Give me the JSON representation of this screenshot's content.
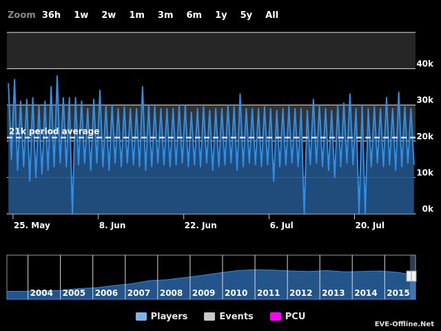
{
  "zoom": {
    "label": "Zoom",
    "buttons": [
      "36h",
      "1w",
      "2w",
      "1m",
      "3m",
      "6m",
      "1y",
      "5y",
      "All"
    ]
  },
  "legend": [
    {
      "label": "Players",
      "color": "#7cb5ec"
    },
    {
      "label": "Events",
      "color": "#c8c8c8"
    },
    {
      "label": "PCU",
      "color": "#ff00ff"
    }
  ],
  "watermark": "EVE-Offline.Net",
  "colors": {
    "line": "#2f8fe6",
    "area": "#23548a",
    "background": "#000000",
    "plot_band_dark": "#262626",
    "plot_band_mid": "#333333"
  },
  "chart_data": {
    "type": "line",
    "series": [
      {
        "name": "Players"
      }
    ],
    "x_range": [
      "2015-05-24",
      "2015-07-30"
    ],
    "x_tick_labels": [
      "25. May",
      "8. Jun",
      "22. Jun",
      "6. Jul",
      "20. Jul"
    ],
    "ylim": [
      0,
      50000
    ],
    "y_tick_labels": [
      "0k",
      "10k",
      "20k",
      "30k",
      "40k"
    ],
    "y_ticks": [
      0,
      10000,
      20000,
      30000,
      40000
    ],
    "period_average": {
      "value": 21000,
      "label": "21k period average"
    },
    "daily_peak": [
      36000,
      37000,
      31000,
      31500,
      32000,
      30000,
      31000,
      35000,
      38000,
      32000,
      32000,
      32000,
      31000,
      29000,
      31500,
      34000,
      30000,
      30000,
      29000,
      29500,
      29000,
      29000,
      35000,
      30000,
      29500,
      29000,
      29000,
      29000,
      30000,
      30000,
      28000,
      29000,
      29500,
      28500,
      29000,
      29000,
      30000,
      29500,
      33000,
      29000,
      29000,
      29000,
      29500,
      29000,
      28500,
      29000,
      29500,
      29000,
      29000,
      28500,
      31500,
      30000,
      29000,
      28500,
      30000,
      30500,
      33000,
      29000,
      30000,
      29000,
      29500,
      29000,
      32000,
      29000,
      33500,
      29500,
      29000
    ],
    "daily_trough": [
      15000,
      12000,
      13000,
      9000,
      10000,
      11000,
      12000,
      13000,
      14000,
      13000,
      0,
      13500,
      14000,
      12000,
      14000,
      13000,
      12000,
      14000,
      13000,
      14000,
      13500,
      13000,
      12000,
      13000,
      14000,
      13500,
      13000,
      13500,
      14000,
      13000,
      13500,
      13000,
      14000,
      12000,
      13000,
      13500,
      14000,
      12000,
      13000,
      14000,
      13500,
      13000,
      13500,
      9000,
      13000,
      13500,
      14000,
      13000,
      0,
      13500,
      14000,
      13000,
      12000,
      10000,
      13000,
      14000,
      13500,
      0,
      0,
      13000,
      14000,
      13000,
      13500,
      12000,
      13000,
      14000,
      13500
    ],
    "navigator": {
      "year_labels": [
        "2004",
        "2005",
        "2006",
        "2007",
        "2008",
        "2009",
        "2010",
        "2011",
        "2012",
        "2013",
        "2014",
        "2015"
      ],
      "values": [
        9000,
        9000,
        9500,
        10000,
        12000,
        13000,
        15500,
        17500,
        21000,
        22000,
        24500,
        27000,
        30000,
        32500,
        33500,
        33000,
        32000,
        31500,
        32500,
        31000,
        31500,
        32000,
        30500,
        27000
      ],
      "selection": [
        "2015-05-24",
        "2015-07-30"
      ]
    }
  }
}
